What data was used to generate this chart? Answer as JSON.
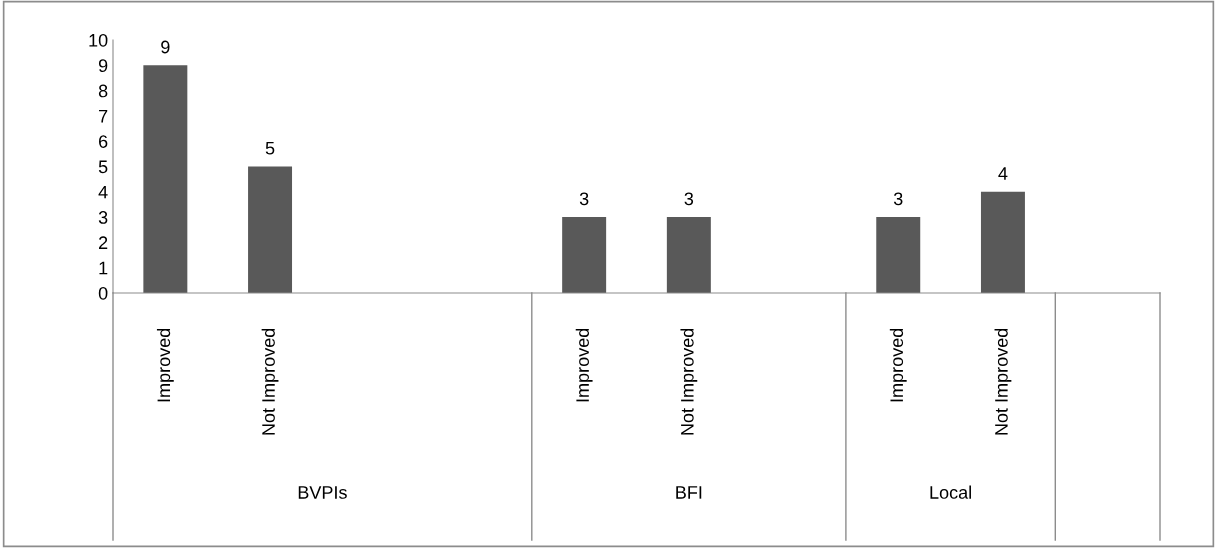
{
  "chart_data": {
    "type": "bar",
    "categories": [
      "Improved",
      "Not Improved",
      null,
      null,
      "Improved",
      "Not Improved",
      null,
      "Improved",
      "Not Improved",
      null
    ],
    "values": [
      9,
      5,
      null,
      null,
      3,
      3,
      null,
      3,
      4,
      null
    ],
    "color": "#595959",
    "ylim": [
      0,
      10
    ],
    "yticks": [
      0,
      1,
      2,
      3,
      4,
      5,
      6,
      7,
      8,
      9,
      10
    ],
    "data_labels": true,
    "grid": false,
    "legend": false,
    "annotations": [
      "BVPIs",
      "BFI",
      "Local"
    ]
  }
}
